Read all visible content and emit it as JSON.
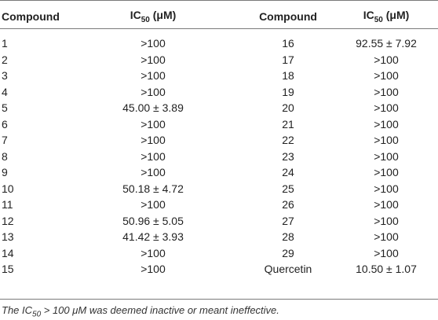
{
  "headers": {
    "compound_left": "Compound",
    "ic50_left_main": "IC",
    "ic50_left_sub": "50",
    "ic50_left_unit": " (μM)",
    "compound_right": "Compound",
    "ic50_right_main": "IC",
    "ic50_right_sub": "50",
    "ic50_right_unit": " (μM)"
  },
  "rows": [
    {
      "c1": "1",
      "v1": ">100",
      "c2": "16",
      "v2": "92.55 ± 7.92"
    },
    {
      "c1": "2",
      "v1": ">100",
      "c2": "17",
      "v2": ">100"
    },
    {
      "c1": "3",
      "v1": ">100",
      "c2": "18",
      "v2": ">100"
    },
    {
      "c1": "4",
      "v1": ">100",
      "c2": "19",
      "v2": ">100"
    },
    {
      "c1": "5",
      "v1": "45.00 ± 3.89",
      "c2": "20",
      "v2": ">100"
    },
    {
      "c1": "6",
      "v1": ">100",
      "c2": "21",
      "v2": ">100"
    },
    {
      "c1": "7",
      "v1": ">100",
      "c2": "22",
      "v2": ">100"
    },
    {
      "c1": "8",
      "v1": ">100",
      "c2": "23",
      "v2": ">100"
    },
    {
      "c1": "9",
      "v1": ">100",
      "c2": "24",
      "v2": ">100"
    },
    {
      "c1": "10",
      "v1": "50.18 ± 4.72",
      "c2": "25",
      "v2": ">100"
    },
    {
      "c1": "11",
      "v1": ">100",
      "c2": "26",
      "v2": ">100"
    },
    {
      "c1": "12",
      "v1": "50.96 ± 5.05",
      "c2": "27",
      "v2": ">100"
    },
    {
      "c1": "13",
      "v1": "41.42 ± 3.93",
      "c2": "28",
      "v2": ">100"
    },
    {
      "c1": "14",
      "v1": ">100",
      "c2": "29",
      "v2": ">100"
    },
    {
      "c1": "15",
      "v1": ">100",
      "c2": "Quercetin",
      "v2": "10.50 ± 1.07"
    }
  ],
  "footnote": {
    "prefix": "The IC",
    "sub": "50",
    "suffix": " > 100 μM was deemed inactive or meant ineffective."
  }
}
